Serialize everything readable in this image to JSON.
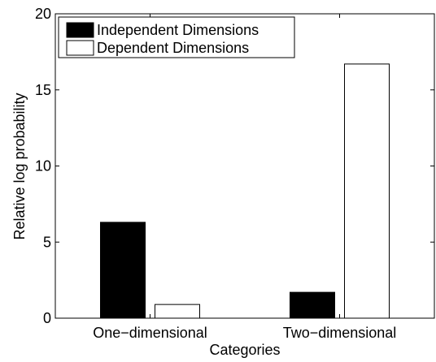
{
  "chart_data": {
    "type": "bar",
    "title": "",
    "xlabel": "Categories",
    "ylabel": "Relative log probability",
    "categories": [
      "One−dimensional",
      "Two−dimensional"
    ],
    "series": [
      {
        "name": "Independent Dimensions",
        "values": [
          6.3,
          1.7
        ],
        "color": "#000000"
      },
      {
        "name": "Dependent Dimensions",
        "values": [
          0.9,
          16.7
        ],
        "color": "#ffffff"
      }
    ],
    "ylim": [
      0,
      20
    ],
    "yticks": [
      "0",
      "5",
      "10",
      "15",
      "20"
    ],
    "grid": false,
    "legend": {
      "placement": "top-left"
    }
  }
}
